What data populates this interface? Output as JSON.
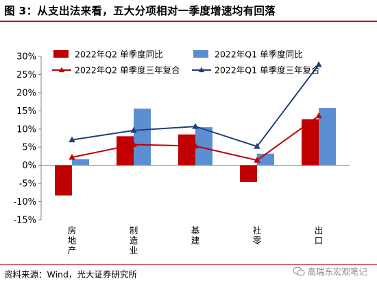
{
  "title": "图 3：从支出法来看，五大分项相对一季度增速均有回落",
  "source": "资料来源：Wind，光大证券研究所",
  "watermark": "高瑞东宏观笔记",
  "colors": {
    "q2_bar": "#c00000",
    "q1_bar": "#5b8fd2",
    "q2_line": "#c00000",
    "q1_line": "#1f3f78",
    "title_rule": "#c00000"
  },
  "chart_data": {
    "type": "bar",
    "categories": [
      "房地产",
      "制造业",
      "基建",
      "社零",
      "出口"
    ],
    "ylim": [
      -15,
      30
    ],
    "yticks": [
      -15,
      -10,
      -5,
      0,
      5,
      10,
      15,
      20,
      25,
      30
    ],
    "ytick_labels": [
      "-15%",
      "-10%",
      "-5%",
      "0%",
      "5%",
      "10%",
      "15%",
      "20%",
      "25%",
      "30%"
    ],
    "legend_position": "top",
    "grid": false,
    "series": [
      {
        "name": "2022年Q2 单季度同比",
        "type": "bar",
        "color": "#c00000",
        "values": [
          -8.3,
          8.0,
          8.5,
          -4.6,
          12.7
        ]
      },
      {
        "name": "2022年Q1 单季度同比",
        "type": "bar",
        "color": "#5b8fd2",
        "values": [
          1.7,
          15.6,
          10.5,
          3.2,
          15.8
        ]
      },
      {
        "name": "2022年Q2 单季度三年复合",
        "type": "line",
        "color": "#c00000",
        "marker": "triangle",
        "values": [
          2.2,
          5.7,
          5.3,
          1.4,
          13.6
        ]
      },
      {
        "name": "2022年Q1 单季度三年复合",
        "type": "line",
        "color": "#1f3f78",
        "marker": "triangle",
        "values": [
          7.0,
          9.6,
          10.7,
          5.2,
          27.7
        ]
      }
    ]
  }
}
